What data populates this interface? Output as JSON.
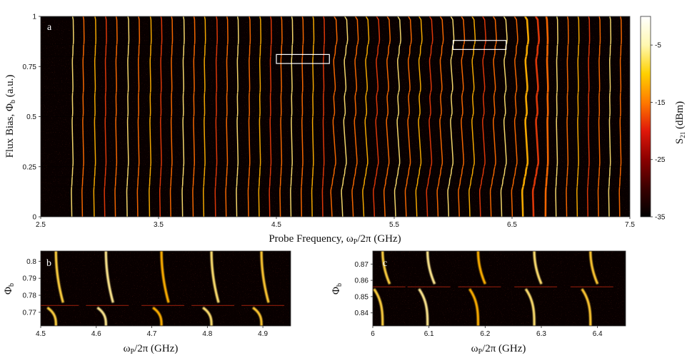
{
  "figure": {
    "panels": [
      {
        "id": "a",
        "letter": "a",
        "type": "heatmap",
        "xlabel_main": "Probe Frequency, ω",
        "xlabel_sub": "P",
        "xlabel_tail": "/2π (GHz)",
        "ylabel_main": "Flux Bias, Φ",
        "ylabel_sub": "b",
        "ylabel_tail": "  (a.u.)",
        "xlim": [
          2.5,
          7.5
        ],
        "ylim": [
          0,
          1
        ],
        "xticks": [
          "2.5",
          "3.5",
          "4.5",
          "5.5",
          "6.5",
          "7.5"
        ],
        "yticks": [
          "0",
          "0.25",
          "0.5",
          "0.75",
          "1"
        ],
        "highlight_boxes": [
          {
            "x0": 4.5,
            "x1": 4.95,
            "y0": 0.765,
            "y1": 0.81
          },
          {
            "x0": 6.0,
            "x1": 6.45,
            "y0": 0.835,
            "y1": 0.88
          }
        ]
      },
      {
        "id": "b",
        "letter": "b",
        "type": "heatmap",
        "xlabel_main": "ω",
        "xlabel_sub": "P",
        "xlabel_tail": "/2π (GHz)",
        "ylabel_main": "Φ",
        "ylabel_sub": "b",
        "xlim": [
          4.5,
          4.95
        ],
        "ylim": [
          0.762,
          0.806
        ],
        "xticks": [
          "4.5",
          "4.6",
          "4.7",
          "4.8",
          "4.9"
        ],
        "yticks": [
          "0.77",
          "0.78",
          "0.79",
          "0.8"
        ]
      },
      {
        "id": "c",
        "letter": "c",
        "type": "heatmap",
        "xlabel_main": "ω",
        "xlabel_sub": "P",
        "xlabel_tail": "/2π (GHz)",
        "ylabel_main": "Φ",
        "ylabel_sub": "b",
        "xlim": [
          6.0,
          6.45
        ],
        "ylim": [
          0.832,
          0.878
        ],
        "xticks": [
          "6",
          "6.1",
          "6.2",
          "6.3",
          "6.4"
        ],
        "yticks": [
          "0.84",
          "0.85",
          "0.86",
          "0.87"
        ]
      }
    ],
    "colorbar": {
      "label_main": "S",
      "label_sub": "21",
      "label_tail": " (dBm)",
      "range": [
        -35,
        0
      ],
      "ticks": [
        "-5",
        "-15",
        "-25",
        "-35"
      ],
      "colormap": [
        "#000000",
        "#3a0000",
        "#8b0000",
        "#e0180a",
        "#ff7a00",
        "#ffd000",
        "#fff8b0",
        "#ffffff"
      ]
    }
  },
  "chart_data": [
    {
      "type": "heatmap",
      "title": "",
      "xlabel": "Probe Frequency, ωP/2π (GHz)",
      "ylabel": "Flux Bias, Φb (a.u.)",
      "xlim": [
        2.5,
        7.5
      ],
      "ylim": [
        0,
        1
      ],
      "value_range_dBm": [
        -35,
        0
      ],
      "resonance_frequencies_GHz": [
        2.77,
        2.86,
        2.96,
        3.05,
        3.14,
        3.24,
        3.33,
        3.43,
        3.52,
        3.61,
        3.71,
        3.8,
        3.89,
        3.99,
        4.08,
        4.17,
        4.27,
        4.36,
        4.45,
        4.54,
        4.63,
        4.72,
        4.81,
        4.9,
        4.99,
        5.08,
        5.17,
        5.26,
        5.35,
        5.44,
        5.53,
        5.62,
        5.71,
        5.8,
        5.89,
        5.98,
        6.07,
        6.16,
        6.25,
        6.34,
        6.43,
        6.52,
        6.61,
        6.7,
        6.79,
        6.88,
        6.97,
        7.06,
        7.15,
        7.24,
        7.33,
        7.42
      ],
      "anticrossing_flux_values": [
        0.15,
        0.2,
        0.25,
        0.5,
        0.62,
        0.8,
        0.86
      ]
    },
    {
      "type": "heatmap",
      "title": "",
      "xlabel": "ωP/2π (GHz)",
      "ylabel": "Φb",
      "xlim": [
        4.5,
        4.95
      ],
      "ylim": [
        0.762,
        0.806
      ],
      "resonance_frequencies_GHz": [
        4.53,
        4.62,
        4.72,
        4.81,
        4.9
      ],
      "anticrossing_flux": 0.774
    },
    {
      "type": "heatmap",
      "title": "",
      "xlabel": "ωP/2π (GHz)",
      "ylabel": "Φb",
      "xlim": [
        6.0,
        6.45
      ],
      "ylim": [
        0.832,
        0.878
      ],
      "resonance_frequencies_GHz": [
        6.02,
        6.1,
        6.19,
        6.29,
        6.39
      ],
      "anticrossing_flux_range": [
        0.84,
        0.872
      ]
    }
  ]
}
